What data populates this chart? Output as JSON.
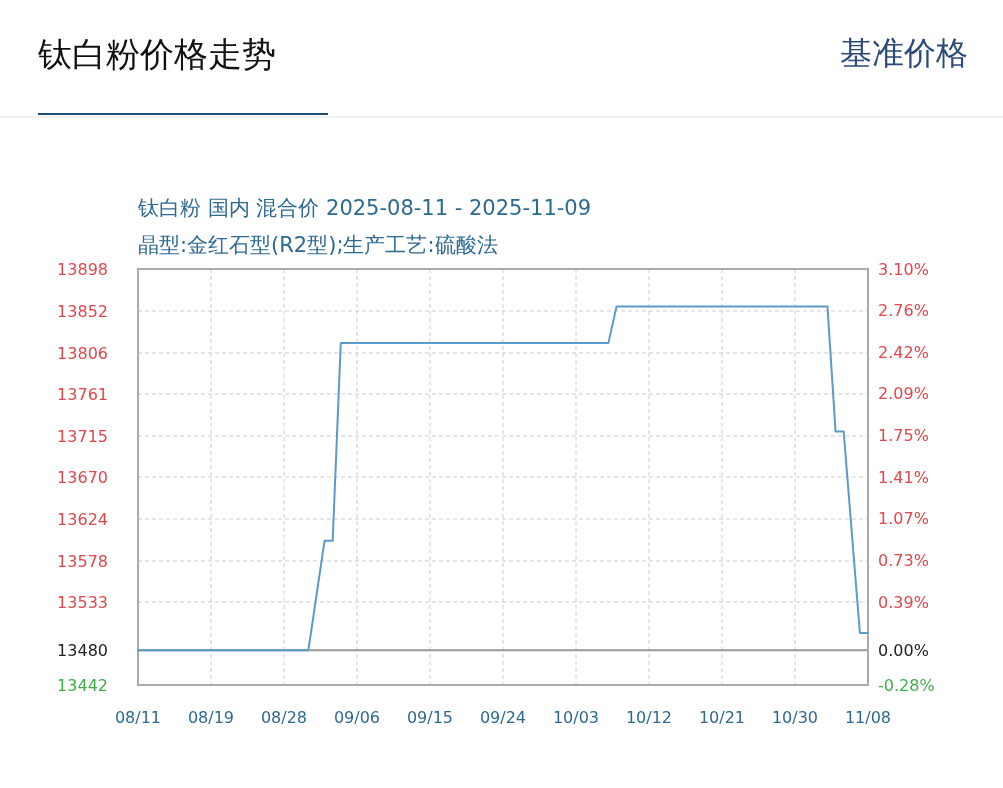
{
  "chart_data": {
    "type": "line",
    "title": "钛白粉价格走势",
    "subtitle": "钛白粉 国内 混合价 2025-08-11 - 2025-11-09",
    "annotations": [
      "基准价格",
      "晶型:金红石型(R2型);生产工艺:硫酸法"
    ],
    "x": [
      "2025-08-11",
      "2025-09-01",
      "2025-09-03",
      "2025-09-04",
      "2025-09-05",
      "2025-10-08",
      "2025-10-09",
      "2025-11-04",
      "2025-11-05",
      "2025-11-06",
      "2025-11-08",
      "2025-11-09"
    ],
    "series": [
      {
        "color": "#5b9bc8",
        "values": [
          13480,
          13480,
          13600,
          13600,
          13817,
          13817,
          13857,
          13857,
          13720,
          13720,
          13499,
          13499
        ]
      }
    ],
    "xlim": [
      "2025-08-11",
      "2025-11-09"
    ],
    "xticks": [
      {
        "value": "2025-08-11",
        "label": "08/11"
      },
      {
        "value": "2025-08-20",
        "label": "08/19"
      },
      {
        "value": "2025-08-29",
        "label": "08/28"
      },
      {
        "value": "2025-09-07",
        "label": "09/06"
      },
      {
        "value": "2025-09-16",
        "label": "09/15"
      },
      {
        "value": "2025-09-25",
        "label": "09/24"
      },
      {
        "value": "2025-10-04",
        "label": "10/03"
      },
      {
        "value": "2025-10-13",
        "label": "10/12"
      },
      {
        "value": "2025-10-22",
        "label": "10/21"
      },
      {
        "value": "2025-10-31",
        "label": "10/30"
      },
      {
        "value": "2025-11-09",
        "label": "11/08"
      }
    ],
    "ylim": [
      13442,
      13898
    ],
    "yticks": [
      13442,
      13480,
      13533,
      13578,
      13624,
      13670,
      13715,
      13761,
      13806,
      13852,
      13898
    ],
    "y2lim": [
      -0.28,
      3.1
    ],
    "y2ticks": [
      {
        "value": -0.28,
        "label": "-0.28%"
      },
      {
        "value": 0,
        "label": "0.00%"
      },
      {
        "value": 0.39,
        "label": "0.39%"
      },
      {
        "value": 0.73,
        "label": "0.73%"
      },
      {
        "value": 1.07,
        "label": "1.07%"
      },
      {
        "value": 1.41,
        "label": "1.41%"
      },
      {
        "value": 1.75,
        "label": "1.75%"
      },
      {
        "value": 2.09,
        "label": "2.09%"
      },
      {
        "value": 2.42,
        "label": "2.42%"
      },
      {
        "value": 2.76,
        "label": "2.76%"
      },
      {
        "value": 3.1,
        "label": "3.10%"
      }
    ],
    "ref_lines": [
      {
        "axis": "y",
        "value": 13480,
        "color": "#999999"
      }
    ],
    "grid": true
  }
}
